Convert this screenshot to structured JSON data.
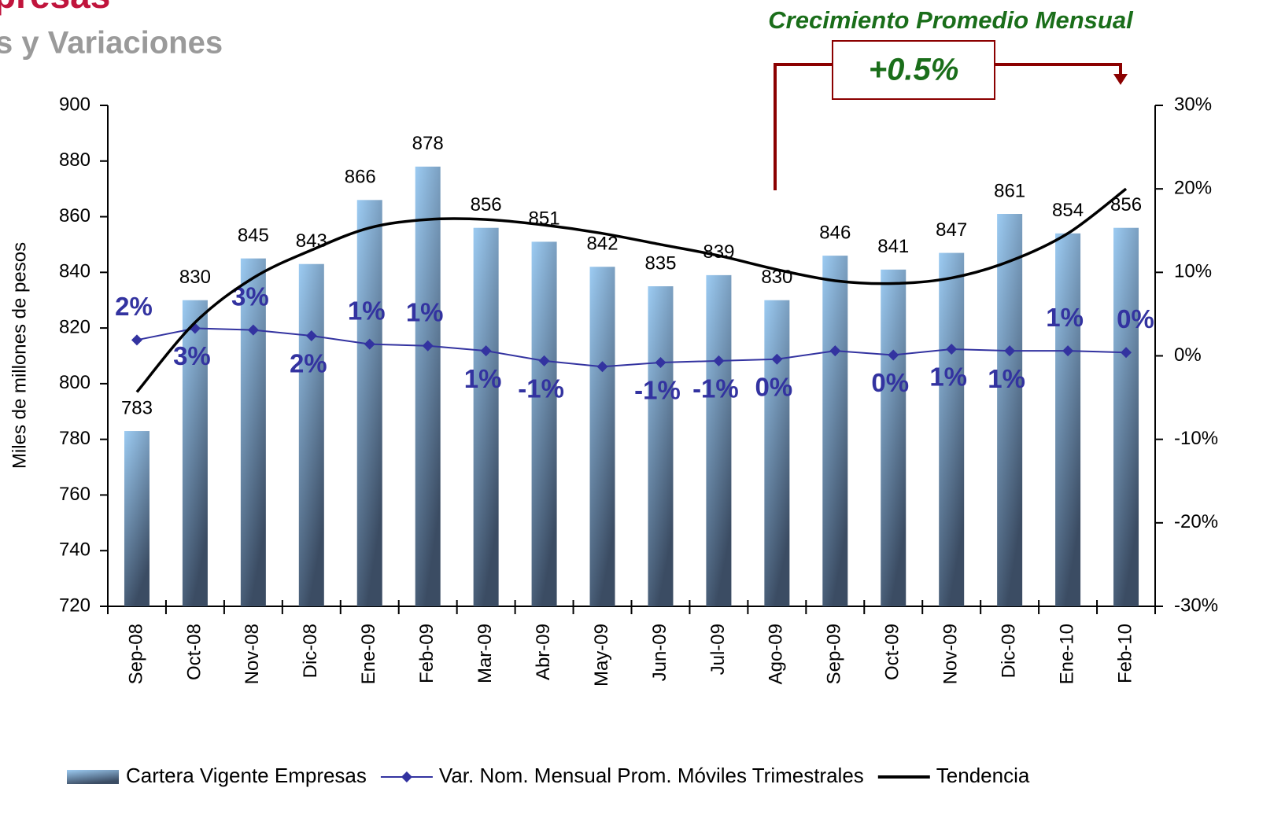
{
  "chart_data": {
    "type": "bar",
    "title": "presas",
    "subtitle": "s y Variaciones",
    "annotation": "Crecimiento Promedio Mensual",
    "annotation_box": "+0.5%",
    "ylabel": "Miles de millones de pesos",
    "categories": [
      "Sep-08",
      "Oct-08",
      "Nov-08",
      "Dic-08",
      "Ene-09",
      "Feb-09",
      "Mar-09",
      "Abr-09",
      "May-09",
      "Jun-09",
      "Jul-09",
      "Ago-09",
      "Sep-09",
      "Oct-09",
      "Nov-09",
      "Dic-09",
      "Ene-10",
      "Feb-10"
    ],
    "series": [
      {
        "name": "Cartera Vigente Empresas",
        "type": "bar",
        "color": "#9ccbf2",
        "values": [
          783,
          830,
          845,
          843,
          866,
          878,
          856,
          851,
          842,
          835,
          839,
          830,
          846,
          841,
          847,
          861,
          854,
          856
        ]
      },
      {
        "name": "Var. Nom. Mensual Prom. Móviles Trimestrales",
        "type": "line",
        "axis": "y2",
        "color": "#3333a0",
        "values": [
          1.9,
          3.3,
          3.1,
          2.4,
          1.4,
          1.2,
          0.6,
          -0.6,
          -1.3,
          -0.8,
          -0.6,
          -0.4,
          0.6,
          0.1,
          0.8,
          0.6,
          0.6,
          0.4
        ],
        "value_labels": [
          "2%",
          "3%",
          "3%",
          "2%",
          "1%",
          "1%",
          "1%",
          "-1%",
          null,
          "-1%",
          "-1%",
          "0%",
          null,
          "0%",
          "1%",
          "1%",
          "1%",
          "0%"
        ]
      },
      {
        "name": "Tendencia",
        "type": "line",
        "color": "#000000",
        "values": [
          797,
          822,
          838,
          848,
          856,
          859,
          859,
          857,
          854,
          850,
          846,
          841,
          837,
          836,
          838,
          844,
          854,
          870
        ]
      }
    ],
    "ylim": [
      720,
      900
    ],
    "yticks": [
      720,
      740,
      760,
      780,
      800,
      820,
      840,
      860,
      880,
      900
    ],
    "y2lim": [
      -30,
      30
    ],
    "y2ticks": [
      {
        "value": -30,
        "label": "-30%"
      },
      {
        "value": -20,
        "label": "-20%"
      },
      {
        "value": -10,
        "label": "-10%"
      },
      {
        "value": 0,
        "label": "0%"
      },
      {
        "value": 10,
        "label": "10%"
      },
      {
        "value": 20,
        "label": "20%"
      },
      {
        "value": 30,
        "label": "30%"
      }
    ],
    "legend": "bottom"
  }
}
